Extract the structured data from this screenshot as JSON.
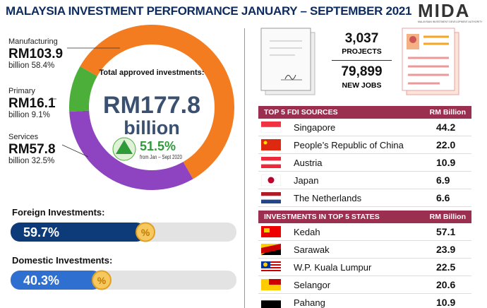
{
  "header": {
    "title": "MALAYSIA INVESTMENT PERFORMANCE JANUARY – SEPTEMBER 2021",
    "logo": "MIDA",
    "logo_tagline": "MALAYSIAN INVESTMENT DEVELOPMENT AUTHORITY"
  },
  "chart_data": [
    {
      "type": "donut",
      "categories": [
        "Manufacturing",
        "Primary",
        "Services"
      ],
      "values": [
        58.4,
        9.1,
        32.5
      ],
      "value_labels": [
        "58.4%",
        "9.1%",
        "32.5%"
      ],
      "amounts": [
        "RM103.9",
        "RM16.1",
        "RM57.8"
      ],
      "unit": "billion",
      "colors": [
        "#f47c20",
        "#4caf3a",
        "#8e44c0"
      ],
      "center": {
        "label": "Total approved investments:",
        "amount": "RM177.8",
        "unit": "billion",
        "growth": "51.5%",
        "growth_note": "from Jan – Sept 2020"
      }
    },
    {
      "type": "progress",
      "categories": [
        "Foreign Investments:",
        "Domestic Investments:"
      ],
      "values": [
        59.7,
        40.3
      ],
      "value_labels": [
        "59.7%",
        "40.3%"
      ],
      "colors": [
        "#0d3a78",
        "#2f6fd0"
      ],
      "xlim": [
        0,
        100
      ],
      "icon": "%"
    }
  ],
  "stats": [
    {
      "value": "3,037",
      "label": "PROJECTS"
    },
    {
      "value": "79,899",
      "label": "NEW JOBS"
    }
  ],
  "tables": [
    {
      "title": "TOP 5 FDI SOURCES",
      "unit": "RM Billion",
      "rows": [
        [
          "Singapore",
          "44.2"
        ],
        [
          "People’s Republic of China",
          "22.0"
        ],
        [
          "Austria",
          "10.9"
        ],
        [
          "Japan",
          "6.9"
        ],
        [
          "The Netherlands",
          "6.6"
        ]
      ]
    },
    {
      "title": "INVESTMENTS IN TOP 5 STATES",
      "unit": "RM Billion",
      "rows": [
        [
          "Kedah",
          "57.1"
        ],
        [
          "Sarawak",
          "23.9"
        ],
        [
          "W.P. Kuala Lumpur",
          "22.5"
        ],
        [
          "Selangor",
          "20.6"
        ],
        [
          "Pahang",
          "10.9"
        ]
      ]
    }
  ]
}
